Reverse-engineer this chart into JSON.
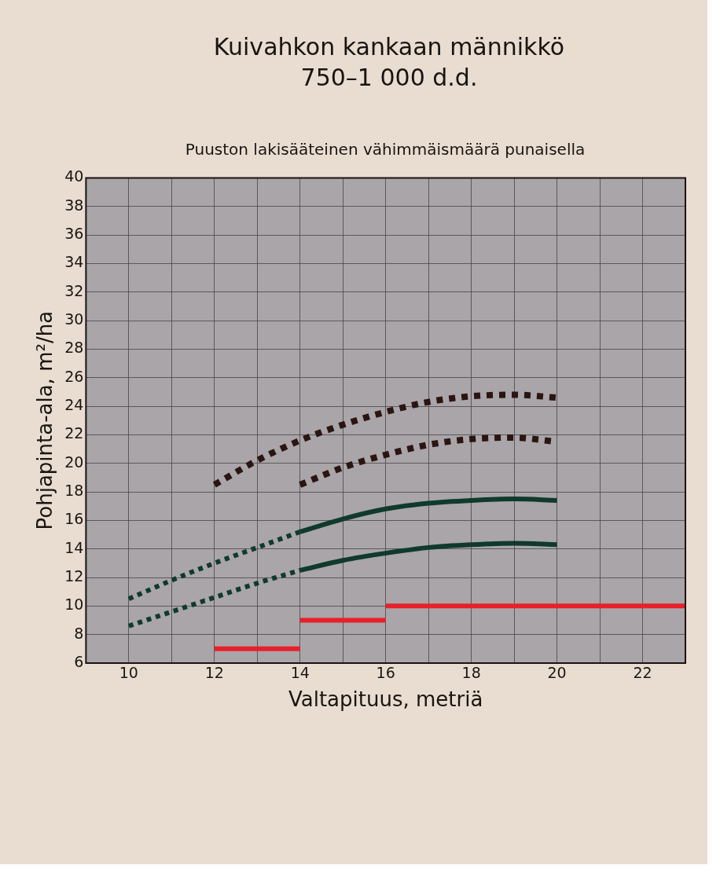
{
  "chart_data": {
    "type": "line",
    "title": "Kuivahkon kankaan männikkö\n750–1 000 d.d.",
    "subtitle": "Puuston lakisääteinen vähimmäismäärä punaisella",
    "xlabel": "Valtapituus, metriä",
    "ylabel": "Pohjapinta-ala, m²/ha",
    "xlim": [
      9,
      23
    ],
    "xticks": [
      10,
      {
        "value": 11,
        "label": null
      },
      12,
      {
        "value": 13,
        "label": null
      },
      14,
      {
        "value": 15,
        "label": null
      },
      16,
      {
        "value": 17,
        "label": null
      },
      18,
      {
        "value": 19,
        "label": null
      },
      20,
      {
        "value": 21,
        "label": null
      },
      22
    ],
    "ylim": [
      6,
      40
    ],
    "yticks": [
      6,
      8,
      10,
      12,
      14,
      16,
      18,
      20,
      22,
      24,
      26,
      28,
      30,
      32,
      34,
      36,
      38,
      40
    ],
    "grid": true,
    "legend": false,
    "marker": "none",
    "series": [
      {
        "color": "#0f3a2c",
        "line_style": "dotted",
        "x": [
          10,
          11,
          12,
          13,
          14
        ],
        "values": [
          10.5,
          11.8,
          13.0,
          14.1,
          15.2
        ]
      },
      {
        "color": "#0f3a2c",
        "line_style": "solid",
        "x": [
          14,
          15,
          16,
          17,
          18,
          19,
          20
        ],
        "values": [
          15.2,
          16.1,
          16.8,
          17.2,
          17.4,
          17.5,
          17.4
        ]
      },
      {
        "color": "#0f3a2c",
        "line_style": "dotted",
        "x": [
          10,
          11,
          12,
          13,
          14
        ],
        "values": [
          8.6,
          9.6,
          10.6,
          11.6,
          12.5
        ]
      },
      {
        "color": "#0f3a2c",
        "line_style": "solid",
        "x": [
          14,
          15,
          16,
          17,
          18,
          19,
          20
        ],
        "values": [
          12.5,
          13.2,
          13.7,
          14.1,
          14.3,
          14.4,
          14.3
        ]
      },
      {
        "color": "#2a1512",
        "line_style": "dotted",
        "x": [
          12,
          13,
          14,
          15,
          16,
          17,
          18,
          19,
          20
        ],
        "values": [
          18.5,
          20.2,
          21.6,
          22.7,
          23.6,
          24.3,
          24.7,
          24.8,
          24.6
        ]
      },
      {
        "color": "#2a1512",
        "line_style": "dotted",
        "x": [
          14,
          15,
          16,
          17,
          18,
          19,
          20
        ],
        "values": [
          18.5,
          19.7,
          20.6,
          21.3,
          21.7,
          21.8,
          21.5
        ]
      },
      {
        "color": "#e8202a",
        "line_style": "solid",
        "x": [
          12,
          14
        ],
        "values": [
          7,
          7
        ]
      },
      {
        "color": "#e8202a",
        "line_style": "solid",
        "x": [
          14,
          16
        ],
        "values": [
          9,
          9
        ]
      },
      {
        "color": "#e8202a",
        "line_style": "solid",
        "x": [
          16,
          23
        ],
        "values": [
          10,
          10
        ]
      }
    ]
  }
}
